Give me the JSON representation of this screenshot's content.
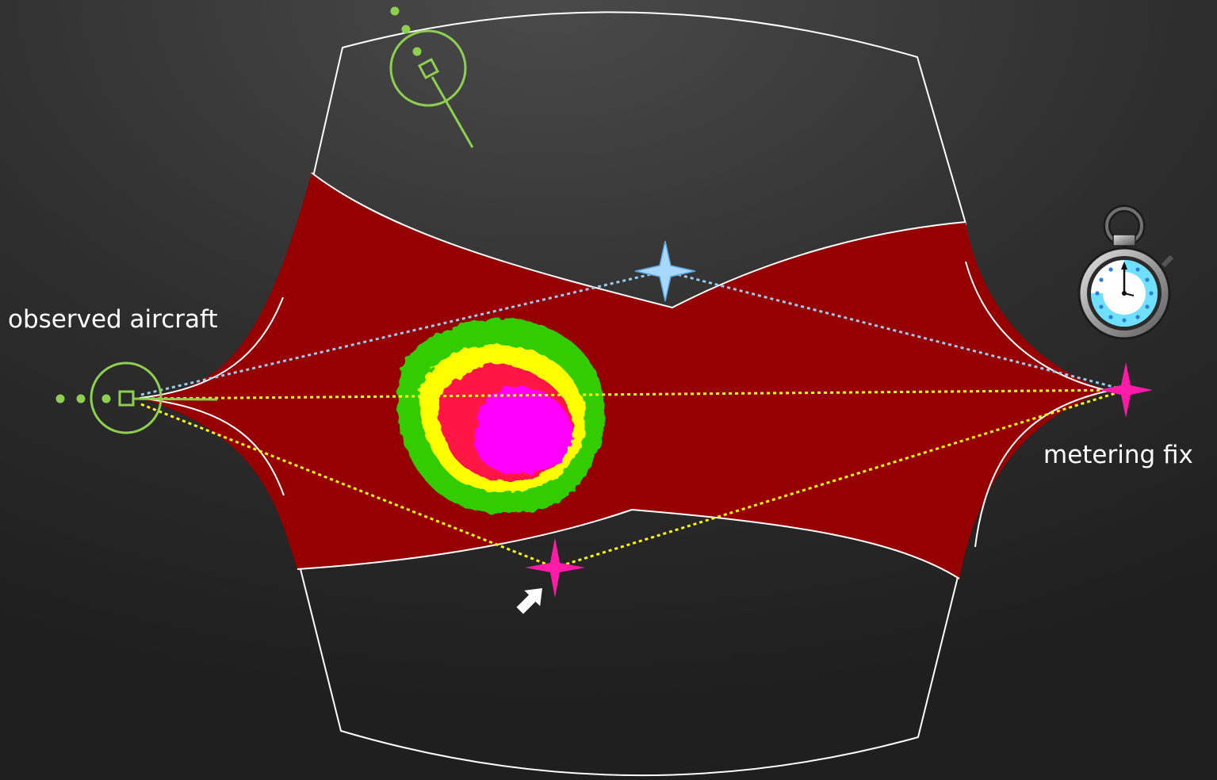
{
  "labels": {
    "observed_aircraft": "observed aircraft",
    "metering_fix": "metering fix"
  },
  "colors": {
    "background": "#2e2e2e",
    "sector_outline": "#ffffff",
    "corridor_fill": "#960000",
    "weather_green": "#33cc00",
    "weather_yellow": "#ffff00",
    "weather_red": "#ff1744",
    "weather_magenta": "#ff00ff",
    "aircraft": "#8fcf4f",
    "route_yellow": "#ffff00",
    "route_blue": "#99ccee",
    "waypoint_magenta": "#ff1aa8",
    "waypoint_blue": "#a9d8ff"
  },
  "icons": {
    "observed_aircraft": "aircraft-symbol-icon",
    "other_aircraft": "aircraft-symbol-icon",
    "metering_fix": "four-point-star-icon",
    "selected_waypoint": "four-point-star-icon",
    "alternate_waypoint": "four-point-star-icon",
    "timer": "stopwatch-icon",
    "cursor": "mouse-pointer-icon"
  }
}
